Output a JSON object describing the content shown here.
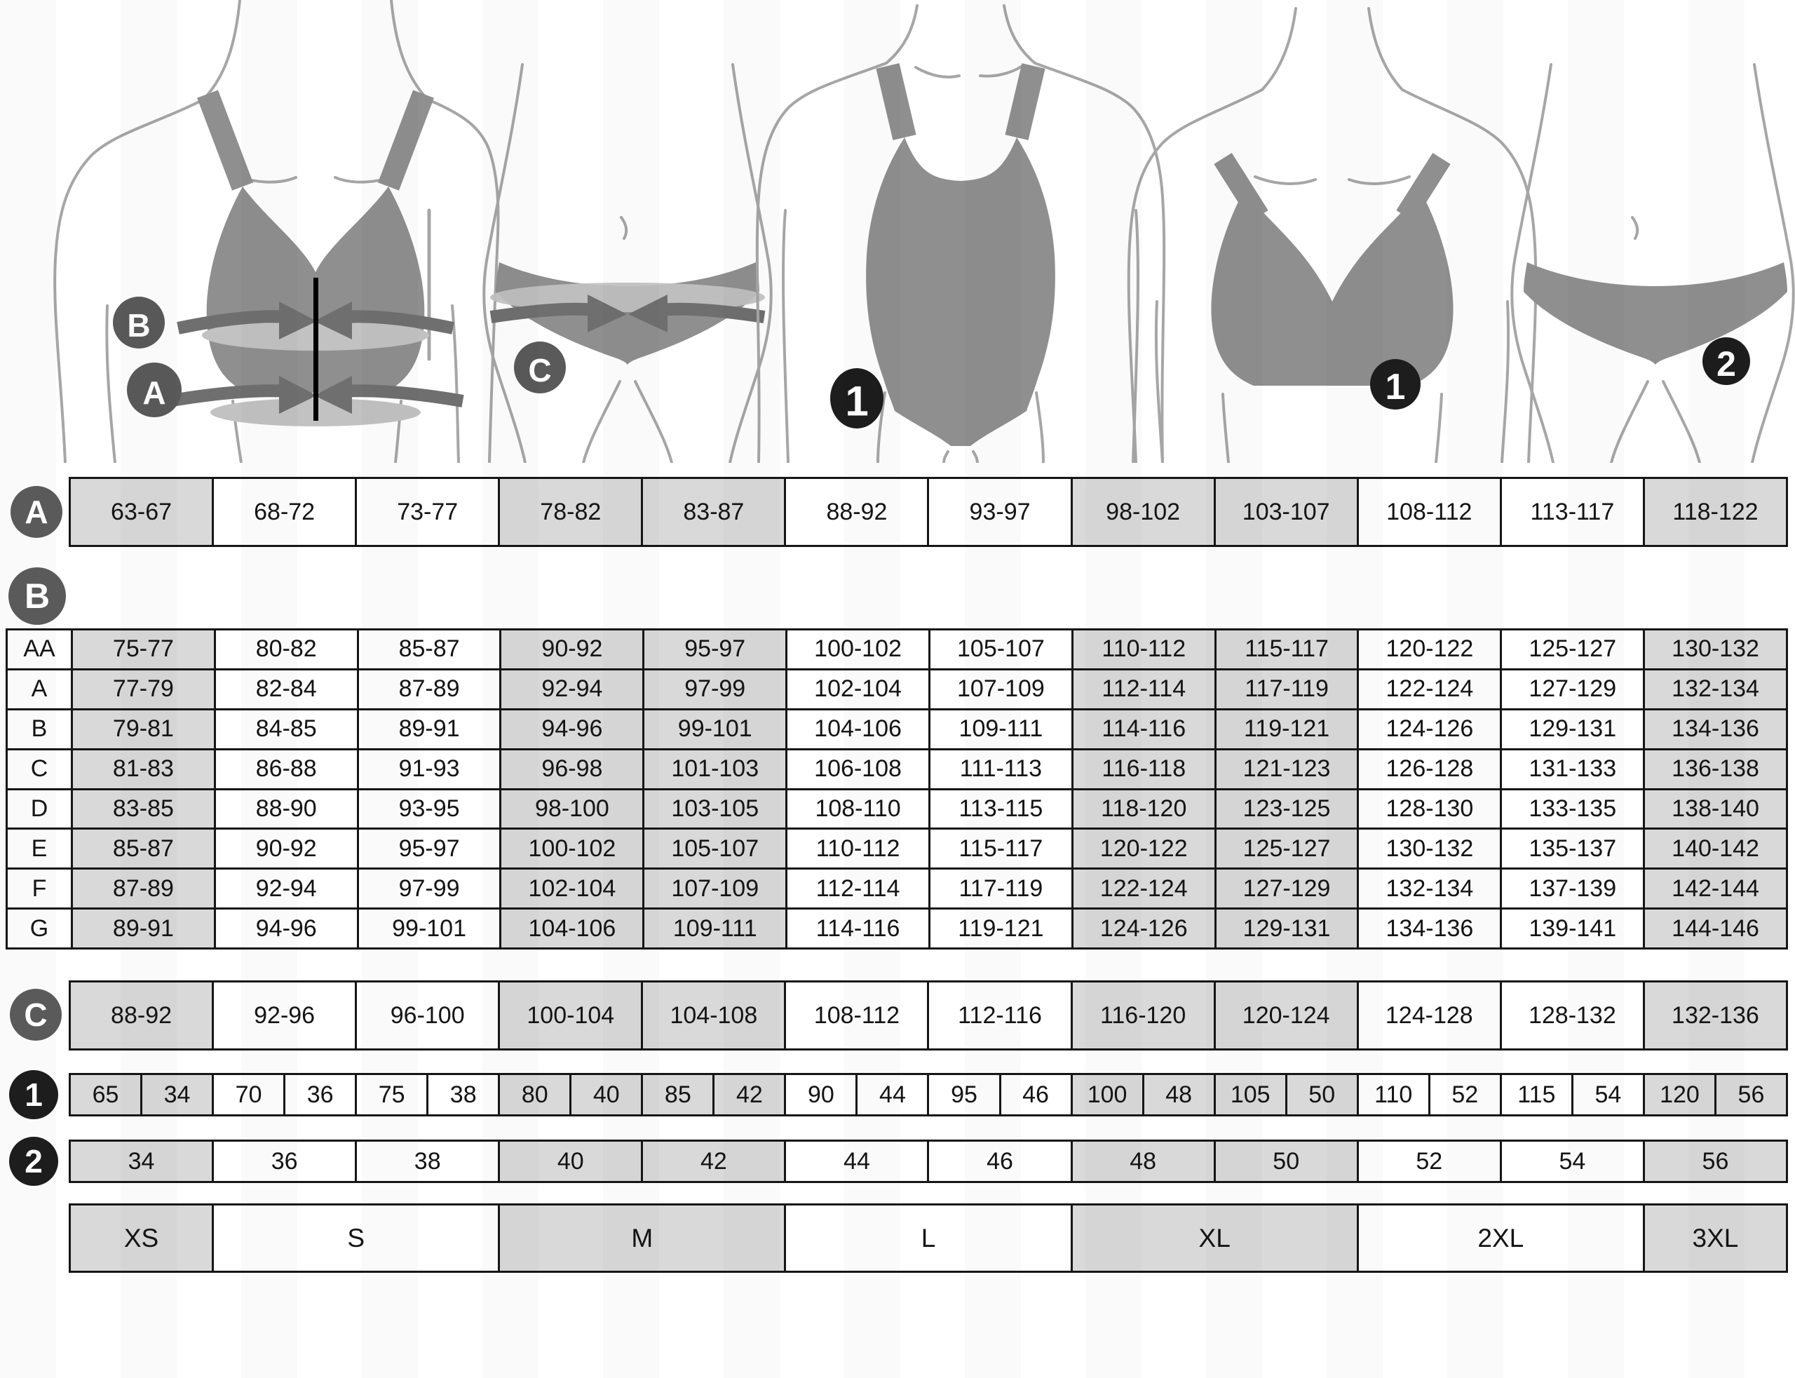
{
  "figures": {
    "bra_measurement": {
      "overbust_label": "B",
      "underbust_label": "A"
    },
    "hips_measurement": {
      "hips_label": "C"
    },
    "swimsuit_item": {
      "badge": "1"
    },
    "bra_item": {
      "badge": "1"
    },
    "panties_item": {
      "badge": "2"
    }
  },
  "tables": {
    "underbust": {
      "label": "A",
      "values": [
        "63-67",
        "68-72",
        "73-77",
        "78-82",
        "83-87",
        "88-92",
        "93-97",
        "98-102",
        "103-107",
        "108-112",
        "113-117",
        "118-122"
      ]
    },
    "cup": {
      "label": "B",
      "rows": [
        {
          "cup": "AA",
          "values": [
            "75-77",
            "80-82",
            "85-87",
            "90-92",
            "95-97",
            "100-102",
            "105-107",
            "110-112",
            "115-117",
            "120-122",
            "125-127",
            "130-132"
          ]
        },
        {
          "cup": "A",
          "values": [
            "77-79",
            "82-84",
            "87-89",
            "92-94",
            "97-99",
            "102-104",
            "107-109",
            "112-114",
            "117-119",
            "122-124",
            "127-129",
            "132-134"
          ]
        },
        {
          "cup": "B",
          "values": [
            "79-81",
            "84-85",
            "89-91",
            "94-96",
            "99-101",
            "104-106",
            "109-111",
            "114-116",
            "119-121",
            "124-126",
            "129-131",
            "134-136"
          ]
        },
        {
          "cup": "C",
          "values": [
            "81-83",
            "86-88",
            "91-93",
            "96-98",
            "101-103",
            "106-108",
            "111-113",
            "116-118",
            "121-123",
            "126-128",
            "131-133",
            "136-138"
          ]
        },
        {
          "cup": "D",
          "values": [
            "83-85",
            "88-90",
            "93-95",
            "98-100",
            "103-105",
            "108-110",
            "113-115",
            "118-120",
            "123-125",
            "128-130",
            "133-135",
            "138-140"
          ]
        },
        {
          "cup": "E",
          "values": [
            "85-87",
            "90-92",
            "95-97",
            "100-102",
            "105-107",
            "110-112",
            "115-117",
            "120-122",
            "125-127",
            "130-132",
            "135-137",
            "140-142"
          ]
        },
        {
          "cup": "F",
          "values": [
            "87-89",
            "92-94",
            "97-99",
            "102-104",
            "107-109",
            "112-114",
            "117-119",
            "122-124",
            "127-129",
            "132-134",
            "137-139",
            "142-144"
          ]
        },
        {
          "cup": "G",
          "values": [
            "89-91",
            "94-96",
            "99-101",
            "104-106",
            "109-111",
            "114-116",
            "119-121",
            "124-126",
            "129-131",
            "134-136",
            "139-141",
            "144-146"
          ]
        }
      ]
    },
    "hips": {
      "label": "C",
      "values": [
        "88-92",
        "92-96",
        "96-100",
        "100-104",
        "104-108",
        "108-112",
        "112-116",
        "116-120",
        "120-124",
        "124-128",
        "128-132",
        "132-136"
      ]
    },
    "bra_sizes": {
      "label": "1",
      "pairs": [
        [
          "65",
          "34"
        ],
        [
          "70",
          "36"
        ],
        [
          "75",
          "38"
        ],
        [
          "80",
          "40"
        ],
        [
          "85",
          "42"
        ],
        [
          "90",
          "44"
        ],
        [
          "95",
          "46"
        ],
        [
          "100",
          "48"
        ],
        [
          "105",
          "50"
        ],
        [
          "110",
          "52"
        ],
        [
          "115",
          "54"
        ],
        [
          "120",
          "56"
        ]
      ]
    },
    "panty_sizes": {
      "label": "2",
      "values": [
        "34",
        "36",
        "38",
        "40",
        "42",
        "44",
        "46",
        "48",
        "50",
        "52",
        "54",
        "56"
      ]
    },
    "letter_sizes": {
      "values": [
        "XS",
        "S",
        "M",
        "L",
        "XL",
        "2XL",
        "3XL"
      ],
      "spans": [
        1,
        2,
        2,
        2,
        2,
        2,
        1
      ]
    }
  },
  "gray_columns": [
    0,
    3,
    4,
    7,
    8,
    11
  ],
  "colors": {
    "cell_gray": "#d9d9d9",
    "border": "#161616",
    "label_circle": "#5a5a5a",
    "badge_circle": "#1d1d1d",
    "garment": "#8f8f8f",
    "body_outline": "#a6a6a6",
    "band_dark": "#6f6f6f",
    "band_light": "#c2c2c2"
  }
}
